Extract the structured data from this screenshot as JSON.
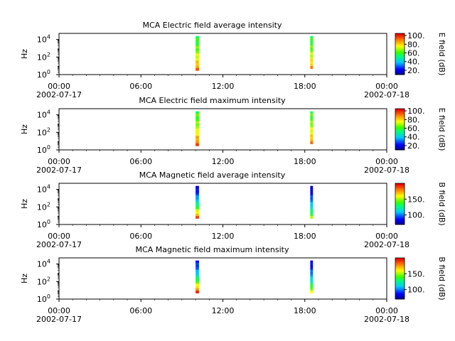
{
  "chart_data": [
    {
      "type": "heatmap",
      "title": "MCA  Electric field average intensity",
      "ylabel": "Hz",
      "colorbar_label": "E field (dB)",
      "colorbar_ticks": [
        "20.",
        "40.",
        "60.",
        "80.",
        "100."
      ],
      "colorbar_range": [
        10,
        105
      ],
      "colormap": "blue-green-yellow-red",
      "yscale": "log",
      "y_ticks": [
        {
          "value": 1,
          "label": "10",
          "exp": "0"
        },
        {
          "value": 100,
          "label": "10",
          "exp": "2"
        },
        {
          "value": 10000,
          "label": "10",
          "exp": "4"
        }
      ],
      "ylim": [
        1,
        50000
      ],
      "x_ticks": [
        {
          "value": 0,
          "time": "00:00",
          "date": "2002-07-17"
        },
        {
          "value": 6,
          "time": "06:00",
          "date": ""
        },
        {
          "value": 12,
          "time": "12:00",
          "date": ""
        },
        {
          "value": 18,
          "time": "18:00",
          "date": ""
        },
        {
          "value": 24,
          "time": "00:00",
          "date": "2002-07-18"
        }
      ],
      "xlim": [
        0,
        24
      ],
      "bursts": [
        {
          "start_hour": 10.0,
          "end_hour": 10.25,
          "freq_min_hz": 3,
          "freq_max_hz": 25000,
          "low_value": 92,
          "high_value": 55
        },
        {
          "start_hour": 18.4,
          "end_hour": 18.6,
          "freq_min_hz": 5,
          "freq_max_hz": 25000,
          "low_value": 88,
          "high_value": 55
        }
      ]
    },
    {
      "type": "heatmap",
      "title": "MCA  Electric field maximum intensity",
      "ylabel": "Hz",
      "colorbar_label": "E field (dB)",
      "colorbar_ticks": [
        "20.",
        "40.",
        "60.",
        "80.",
        "100."
      ],
      "colorbar_range": [
        10,
        105
      ],
      "colormap": "blue-green-yellow-red",
      "yscale": "log",
      "y_ticks": [
        {
          "value": 1,
          "label": "10",
          "exp": "0"
        },
        {
          "value": 100,
          "label": "10",
          "exp": "2"
        },
        {
          "value": 10000,
          "label": "10",
          "exp": "4"
        }
      ],
      "ylim": [
        1,
        50000
      ],
      "x_ticks": [
        {
          "value": 0,
          "time": "00:00",
          "date": "2002-07-17"
        },
        {
          "value": 6,
          "time": "06:00",
          "date": ""
        },
        {
          "value": 12,
          "time": "12:00",
          "date": ""
        },
        {
          "value": 18,
          "time": "18:00",
          "date": ""
        },
        {
          "value": 24,
          "time": "00:00",
          "date": "2002-07-18"
        }
      ],
      "xlim": [
        0,
        24
      ],
      "bursts": [
        {
          "start_hour": 10.0,
          "end_hour": 10.25,
          "freq_min_hz": 3,
          "freq_max_hz": 25000,
          "low_value": 95,
          "high_value": 58
        },
        {
          "start_hour": 18.4,
          "end_hour": 18.6,
          "freq_min_hz": 5,
          "freq_max_hz": 25000,
          "low_value": 90,
          "high_value": 58
        }
      ]
    },
    {
      "type": "heatmap",
      "title": "MCA  Magnetic field average intensity",
      "ylabel": "Hz",
      "colorbar_label": "B field (dB)",
      "colorbar_ticks": [
        "100.",
        "150."
      ],
      "colorbar_range": [
        70,
        200
      ],
      "colormap": "blue-green-yellow-red",
      "yscale": "log",
      "y_ticks": [
        {
          "value": 1,
          "label": "10",
          "exp": "0"
        },
        {
          "value": 100,
          "label": "10",
          "exp": "2"
        },
        {
          "value": 10000,
          "label": "10",
          "exp": "4"
        }
      ],
      "ylim": [
        1,
        50000
      ],
      "x_ticks": [
        {
          "value": 0,
          "time": "00:00",
          "date": "2002-07-17"
        },
        {
          "value": 6,
          "time": "06:00",
          "date": ""
        },
        {
          "value": 12,
          "time": "12:00",
          "date": ""
        },
        {
          "value": 18,
          "time": "18:00",
          "date": ""
        },
        {
          "value": 24,
          "time": "00:00",
          "date": "2002-07-18"
        }
      ],
      "xlim": [
        0,
        24
      ],
      "bursts": [
        {
          "start_hour": 10.0,
          "end_hour": 10.25,
          "freq_min_hz": 5,
          "freq_max_hz": 25000,
          "low_value": 190,
          "high_value": 80
        },
        {
          "start_hour": 18.4,
          "end_hour": 18.6,
          "freq_min_hz": 5,
          "freq_max_hz": 25000,
          "low_value": 150,
          "high_value": 78
        }
      ]
    },
    {
      "type": "heatmap",
      "title": "MCA  Magnetic field maximum intensity",
      "ylabel": "Hz",
      "colorbar_label": "B field (dB)",
      "colorbar_ticks": [
        "100.",
        "150."
      ],
      "colorbar_range": [
        70,
        200
      ],
      "colormap": "blue-green-yellow-red",
      "yscale": "log",
      "y_ticks": [
        {
          "value": 1,
          "label": "10",
          "exp": "0"
        },
        {
          "value": 100,
          "label": "10",
          "exp": "2"
        },
        {
          "value": 10000,
          "label": "10",
          "exp": "4"
        }
      ],
      "ylim": [
        1,
        50000
      ],
      "x_ticks": [
        {
          "value": 0,
          "time": "00:00",
          "date": "2002-07-17"
        },
        {
          "value": 6,
          "time": "06:00",
          "date": ""
        },
        {
          "value": 12,
          "time": "12:00",
          "date": ""
        },
        {
          "value": 18,
          "time": "18:00",
          "date": ""
        },
        {
          "value": 24,
          "time": "00:00",
          "date": "2002-07-18"
        }
      ],
      "xlim": [
        0,
        24
      ],
      "bursts": [
        {
          "start_hour": 10.0,
          "end_hour": 10.25,
          "freq_min_hz": 5,
          "freq_max_hz": 25000,
          "low_value": 195,
          "high_value": 85
        },
        {
          "start_hour": 18.4,
          "end_hour": 18.6,
          "freq_min_hz": 5,
          "freq_max_hz": 25000,
          "low_value": 160,
          "high_value": 80
        }
      ]
    }
  ]
}
